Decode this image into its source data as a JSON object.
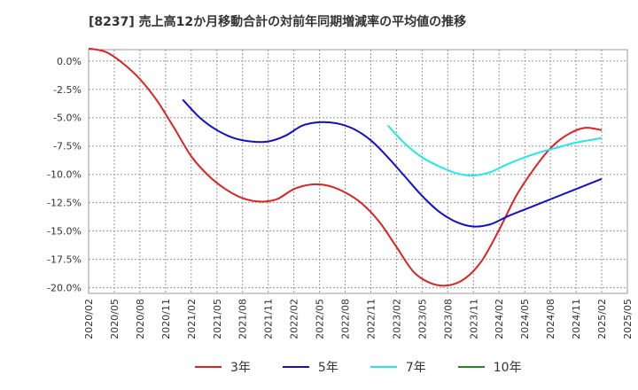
{
  "chart_data": {
    "type": "line",
    "title": "[8237]  売上高12か月移動合計の対前年同期増減率の平均値の推移",
    "ylim": [
      -20.5,
      1.0
    ],
    "y_ticks": [
      0.0,
      -2.5,
      -5.0,
      -7.5,
      -10.0,
      -12.5,
      -15.0,
      -17.5,
      -20.0
    ],
    "y_tick_labels": [
      "0.0%",
      "-2.5%",
      "-5.0%",
      "-7.5%",
      "-10.0%",
      "-12.5%",
      "-15.0%",
      "-17.5%",
      "-20.0%"
    ],
    "x_tick_labels": [
      "2020/02",
      "2020/05",
      "2020/08",
      "2020/11",
      "2021/02",
      "2021/05",
      "2021/08",
      "2021/11",
      "2022/02",
      "2022/05",
      "2022/08",
      "2022/11",
      "2023/02",
      "2023/05",
      "2023/08",
      "2023/11",
      "2024/02",
      "2024/05",
      "2024/08",
      "2024/11",
      "2025/02",
      "2025/05"
    ],
    "grid": true,
    "legend": "bottom",
    "series": [
      {
        "name": "3年",
        "color": "#dd2222",
        "points": [
          [
            "2020/02",
            1.1
          ],
          [
            "2020/04",
            0.8
          ],
          [
            "2020/06",
            -0.2
          ],
          [
            "2020/08",
            -1.6
          ],
          [
            "2020/10",
            -3.5
          ],
          [
            "2020/12",
            -5.9
          ],
          [
            "2021/02",
            -8.4
          ],
          [
            "2021/04",
            -10.1
          ],
          [
            "2021/06",
            -11.3
          ],
          [
            "2021/08",
            -12.1
          ],
          [
            "2021/10",
            -12.4
          ],
          [
            "2021/12",
            -12.2
          ],
          [
            "2022/02",
            -11.3
          ],
          [
            "2022/04",
            -10.9
          ],
          [
            "2022/06",
            -11.0
          ],
          [
            "2022/08",
            -11.6
          ],
          [
            "2022/10",
            -12.6
          ],
          [
            "2022/12",
            -14.2
          ],
          [
            "2023/02",
            -16.4
          ],
          [
            "2023/04",
            -18.6
          ],
          [
            "2023/06",
            -19.6
          ],
          [
            "2023/08",
            -19.8
          ],
          [
            "2023/10",
            -19.2
          ],
          [
            "2023/12",
            -17.6
          ],
          [
            "2024/02",
            -14.9
          ],
          [
            "2024/04",
            -11.9
          ],
          [
            "2024/06",
            -9.6
          ],
          [
            "2024/08",
            -7.7
          ],
          [
            "2024/10",
            -6.5
          ],
          [
            "2024/12",
            -5.9
          ],
          [
            "2025/02",
            -6.1
          ]
        ]
      },
      {
        "name": "5年",
        "color": "#1111cc",
        "points": [
          [
            "2021/01",
            -3.4
          ],
          [
            "2021/03",
            -5.0
          ],
          [
            "2021/05",
            -6.1
          ],
          [
            "2021/07",
            -6.8
          ],
          [
            "2021/09",
            -7.1
          ],
          [
            "2021/11",
            -7.1
          ],
          [
            "2022/01",
            -6.6
          ],
          [
            "2022/03",
            -5.7
          ],
          [
            "2022/05",
            -5.4
          ],
          [
            "2022/07",
            -5.5
          ],
          [
            "2022/09",
            -6.0
          ],
          [
            "2022/11",
            -7.0
          ],
          [
            "2023/01",
            -8.5
          ],
          [
            "2023/03",
            -10.2
          ],
          [
            "2023/05",
            -11.9
          ],
          [
            "2023/07",
            -13.3
          ],
          [
            "2023/09",
            -14.2
          ],
          [
            "2023/11",
            -14.6
          ],
          [
            "2024/01",
            -14.4
          ],
          [
            "2024/03",
            -13.7
          ],
          [
            "2024/05",
            -13.1
          ],
          [
            "2024/07",
            -12.5
          ],
          [
            "2024/09",
            -11.9
          ],
          [
            "2024/11",
            -11.3
          ],
          [
            "2025/02",
            -10.4
          ]
        ]
      },
      {
        "name": "7年",
        "color": "#22e8ee",
        "points": [
          [
            "2023/01",
            -5.7
          ],
          [
            "2023/03",
            -7.3
          ],
          [
            "2023/05",
            -8.5
          ],
          [
            "2023/07",
            -9.3
          ],
          [
            "2023/09",
            -9.9
          ],
          [
            "2023/11",
            -10.1
          ],
          [
            "2024/01",
            -9.8
          ],
          [
            "2024/03",
            -9.1
          ],
          [
            "2024/05",
            -8.5
          ],
          [
            "2024/07",
            -8.0
          ],
          [
            "2024/09",
            -7.6
          ],
          [
            "2024/11",
            -7.2
          ],
          [
            "2025/02",
            -6.8
          ]
        ]
      },
      {
        "name": "10年",
        "color": "#228822",
        "points": []
      }
    ]
  }
}
